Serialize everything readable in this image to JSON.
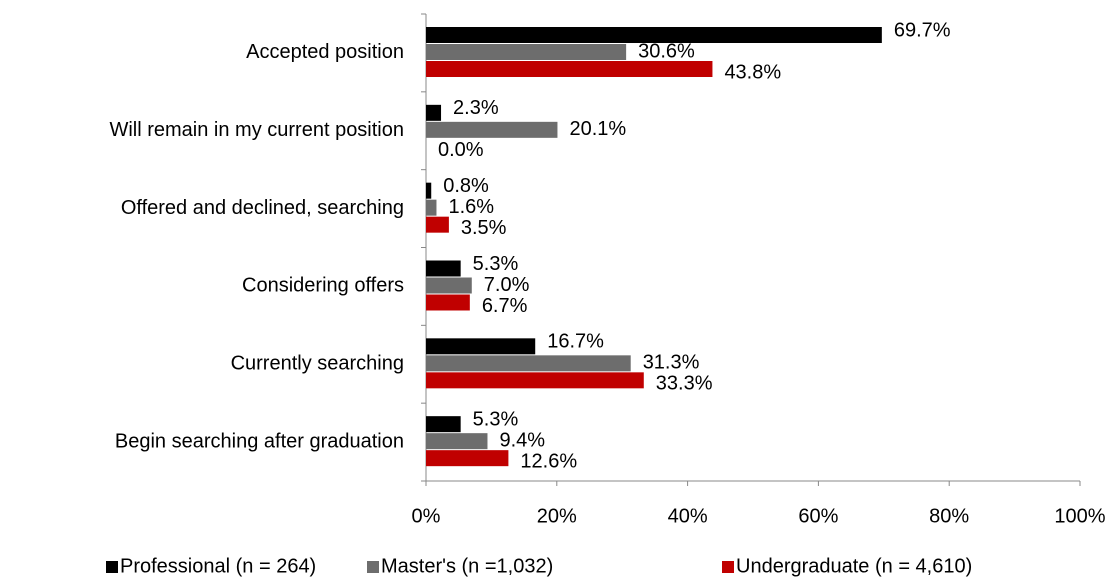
{
  "chart_data": {
    "type": "bar",
    "orientation": "horizontal",
    "categories": [
      "Accepted position",
      "Will remain in my current position",
      "Offered and declined, searching",
      "Considering offers",
      "Currently searching",
      "Begin searching after graduation"
    ],
    "series": [
      {
        "name": "Professional  (n = 264)",
        "color": "#000000",
        "values": [
          69.7,
          2.3,
          0.8,
          5.3,
          16.7,
          5.3
        ],
        "value_labels": [
          "69.7%",
          "2.3%",
          "0.8%",
          "5.3%",
          "16.7%",
          "5.3%"
        ]
      },
      {
        "name": "Master's  (n =1,032)",
        "color": "#6d6d6d",
        "values": [
          30.6,
          20.1,
          1.6,
          7.0,
          31.3,
          9.4
        ],
        "value_labels": [
          "30.6%",
          "20.1%",
          "1.6%",
          "7.0%",
          "31.3%",
          "9.4%"
        ]
      },
      {
        "name": "Undergraduate (n = 4,610)",
        "color": "#c00000",
        "values": [
          43.8,
          0.0,
          3.5,
          6.7,
          33.3,
          12.6
        ],
        "value_labels": [
          "43.8%",
          "0.0%",
          "3.5%",
          "6.7%",
          "33.3%",
          "12.6%"
        ]
      }
    ],
    "xlim": [
      0,
      100
    ],
    "xticks": [
      {
        "value": 0,
        "label": "0%"
      },
      {
        "value": 20,
        "label": "20%"
      },
      {
        "value": 40,
        "label": "40%"
      },
      {
        "value": 60,
        "label": "60%"
      },
      {
        "value": 80,
        "label": "80%"
      },
      {
        "value": 100,
        "label": "100%"
      }
    ],
    "grid": false,
    "legend": "bottom"
  }
}
